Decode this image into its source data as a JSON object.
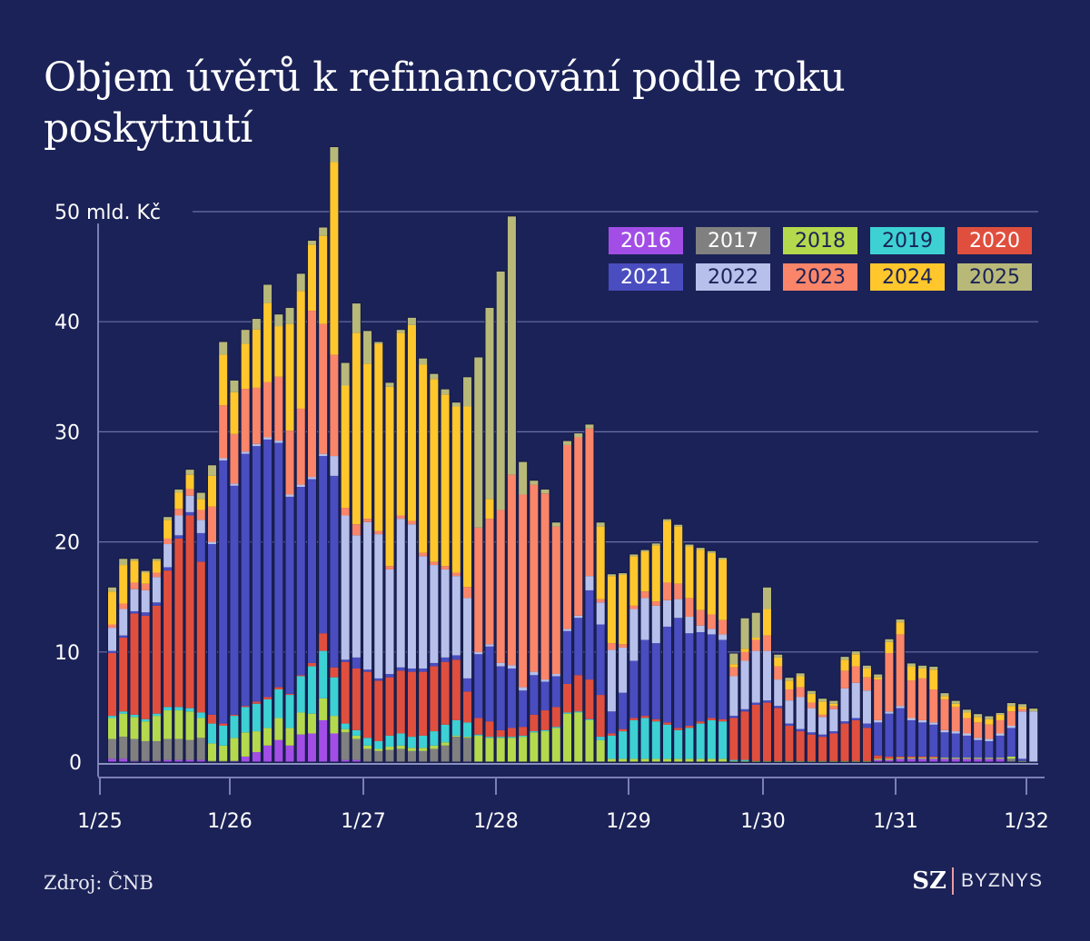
{
  "header": {
    "title": "Objem úvěrů k refinancování podle roku poskytnutí"
  },
  "footer": {
    "source": "Zdroj: ČNB",
    "brand_mark": "SZ",
    "brand_name": "BYZNYS"
  },
  "chart_data": {
    "type": "bar",
    "stacked": true,
    "title": "Objem úvěrů k refinancování podle roku poskytnutí",
    "xlabel": "",
    "ylabel": "mld. Kč",
    "ylim": [
      0,
      50
    ],
    "y_ticks": [
      0,
      10,
      20,
      30,
      40,
      50
    ],
    "y_tick_labels": [
      "0",
      "10",
      "20",
      "30",
      "40",
      "50 mld. Kč"
    ],
    "x_ticks": [
      "1/25",
      "1/26",
      "1/27",
      "1/28",
      "1/29",
      "1/30",
      "1/31",
      "1/32"
    ],
    "x_range": [
      "1/25",
      "1/32"
    ],
    "grid": true,
    "legend_position": "top-right",
    "categories_note": "monthly, January 2025 – December 2031",
    "series": [
      {
        "name": "2016",
        "color": "#a24ee6",
        "values": [
          0.3,
          0.3,
          0.1,
          0.1,
          0.1,
          0.2,
          0.2,
          0.2,
          0.2,
          0,
          0,
          0.1,
          0.5,
          0.9,
          1.5,
          2.0,
          1.5,
          2.5,
          2.6,
          3.8,
          2.6,
          0.2,
          0.2,
          0,
          0,
          0,
          0,
          0,
          0,
          0,
          0,
          0,
          0,
          0,
          0,
          0,
          0,
          0,
          0,
          0,
          0,
          0,
          0,
          0,
          0,
          0,
          0,
          0,
          0,
          0,
          0,
          0,
          0,
          0,
          0,
          0,
          0,
          0,
          0,
          0,
          0,
          0,
          0,
          0,
          0,
          0,
          0,
          0,
          0,
          0.2,
          0.2,
          0.3,
          0.3,
          0.3,
          0.3,
          0.3,
          0.3,
          0.3,
          0.3,
          0.3,
          0.3,
          0,
          0,
          0
        ]
      },
      {
        "name": "2017",
        "color": "#808080",
        "values": [
          1.8,
          2.0,
          2.0,
          1.8,
          1.8,
          1.9,
          1.9,
          1.8,
          2.0,
          0.1,
          0.1,
          0,
          0,
          0,
          0,
          0,
          0,
          0,
          0,
          0,
          0,
          2.5,
          1.9,
          1.2,
          1.0,
          1.1,
          1.2,
          1.0,
          1.0,
          1.2,
          1.5,
          2.3,
          2.2,
          0,
          0,
          0,
          0,
          0,
          0,
          0,
          0,
          0,
          0,
          0,
          0,
          0,
          0,
          0,
          0,
          0,
          0,
          0,
          0,
          0,
          0,
          0,
          0,
          0,
          0,
          0,
          0,
          0,
          0,
          0,
          0,
          0,
          0,
          0,
          0,
          0,
          0,
          0,
          0,
          0,
          0,
          0,
          0,
          0,
          0,
          0,
          0,
          0.3,
          0,
          0
        ]
      },
      {
        "name": "2018",
        "color": "#b5d94d",
        "values": [
          1.9,
          2.1,
          2.0,
          1.8,
          2.3,
          2.6,
          2.6,
          2.6,
          1.8,
          1.6,
          1.4,
          2.1,
          2.2,
          1.9,
          1.6,
          2.0,
          1.6,
          2.0,
          1.8,
          2.0,
          1.6,
          0.3,
          0.3,
          0.3,
          0.2,
          0.3,
          0.3,
          0.3,
          0.3,
          0.3,
          0.3,
          0.1,
          0.1,
          2.4,
          2.2,
          2.2,
          2.2,
          2.3,
          2.7,
          2.8,
          3.1,
          4.4,
          4.5,
          3.8,
          2.0,
          0.3,
          0.3,
          0.3,
          0.3,
          0.3,
          0.3,
          0.3,
          0.3,
          0.3,
          0.3,
          0.3,
          0.1,
          0.1,
          0.1,
          0.1,
          0.1,
          0.1,
          0.1,
          0.1,
          0.1,
          0.1,
          0.1,
          0.1,
          0.1,
          0.1,
          0.1,
          0.1,
          0.1,
          0.1,
          0.1,
          0.1,
          0.1,
          0.1,
          0.1,
          0.1,
          0.1,
          0.2,
          0.1,
          0
        ]
      },
      {
        "name": "2019",
        "color": "#3dd1d4",
        "values": [
          0.2,
          0.2,
          0.2,
          0.2,
          0.2,
          0.3,
          0.3,
          0.3,
          0.5,
          1.8,
          1.8,
          2.0,
          2.3,
          2.5,
          2.6,
          2.6,
          3.0,
          3.3,
          4.3,
          4.3,
          3.5,
          0.5,
          0.5,
          0.7,
          0.7,
          1.0,
          1.1,
          1.0,
          1.1,
          1.3,
          1.6,
          1.4,
          1.3,
          0.1,
          0.1,
          0.1,
          0.1,
          0.1,
          0.1,
          0.1,
          0.1,
          0.1,
          0.1,
          0.1,
          0.3,
          2.1,
          2.5,
          3.5,
          3.7,
          3.4,
          3.1,
          2.6,
          2.8,
          3.2,
          3.5,
          3.4,
          0.1,
          0.1,
          0,
          0,
          0,
          0,
          0,
          0,
          0,
          0,
          0,
          0,
          0,
          0,
          0,
          0,
          0,
          0,
          0,
          0,
          0,
          0,
          0,
          0,
          0,
          0,
          0,
          0
        ]
      },
      {
        "name": "2020",
        "color": "#e04f3e",
        "values": [
          5.7,
          6.7,
          9.2,
          9.4,
          9.8,
          12.4,
          15.3,
          17.5,
          13.7,
          0.8,
          0.2,
          0.1,
          0.1,
          0.2,
          0.2,
          0.2,
          0.1,
          0.1,
          0.3,
          1.6,
          0.9,
          5.6,
          5.6,
          6.0,
          5.5,
          5.3,
          5.7,
          5.9,
          5.8,
          5.9,
          5.7,
          5.5,
          2.8,
          1.5,
          1.4,
          0.6,
          0.8,
          0.8,
          1.5,
          1.8,
          1.8,
          2.6,
          3.3,
          3.6,
          3.8,
          0.2,
          0.2,
          0.2,
          0.2,
          0.2,
          0.2,
          0.2,
          0.2,
          0.2,
          0.2,
          0.2,
          3.8,
          4.4,
          5.1,
          5.3,
          4.8,
          3.2,
          2.7,
          2.4,
          2.2,
          2.5,
          3.4,
          3.7,
          3.0,
          0.3,
          0.2,
          0.1,
          0.1,
          0.1,
          0.1,
          0,
          0,
          0,
          0,
          0,
          0,
          0,
          0,
          0
        ]
      },
      {
        "name": "2021",
        "color": "#4a4dbf",
        "values": [
          0.2,
          0.2,
          0.2,
          0.3,
          0.3,
          0.3,
          0.3,
          0.3,
          2.6,
          15.5,
          23.9,
          20.8,
          22.9,
          23.2,
          23.4,
          22.2,
          17.9,
          17.1,
          16.7,
          16.1,
          17.4,
          0.2,
          1.0,
          0.2,
          0.2,
          0.3,
          0.3,
          0.3,
          0.3,
          0.3,
          0.4,
          0.4,
          1.2,
          5.8,
          6.8,
          5.8,
          5.4,
          3.3,
          3.6,
          2.6,
          2.8,
          4.8,
          5.2,
          8.1,
          6.4,
          2.0,
          3.3,
          5.2,
          6.9,
          6.9,
          8.7,
          10.0,
          8.4,
          8.1,
          7.6,
          7.2,
          0.2,
          0.2,
          0.2,
          0.2,
          0.2,
          0.2,
          0.2,
          0.2,
          0.2,
          0.2,
          0.2,
          0.2,
          0.4,
          3.0,
          3.9,
          4.4,
          3.3,
          3.1,
          2.9,
          2.3,
          2.2,
          2.0,
          1.6,
          1.5,
          2.0,
          2.6,
          0.2,
          0
        ]
      },
      {
        "name": "2022",
        "color": "#b6c0ea",
        "values": [
          2.1,
          2.4,
          2.0,
          2.0,
          2.3,
          2.1,
          1.8,
          1.5,
          1.2,
          0.2,
          0.2,
          0.2,
          0.2,
          0.2,
          0.2,
          0.2,
          0.2,
          0.2,
          0.2,
          0.2,
          1.8,
          13.1,
          11.1,
          13.4,
          13.1,
          9.5,
          13.5,
          13.1,
          10.2,
          8.9,
          8.0,
          7.2,
          7.3,
          0.2,
          0.2,
          0.3,
          0.3,
          0.3,
          0.3,
          0.2,
          0.2,
          0.2,
          0.2,
          1.3,
          2.0,
          5.6,
          4.1,
          4.7,
          3.8,
          3.4,
          2.4,
          1.7,
          1.5,
          0.6,
          0.5,
          0.5,
          3.6,
          4.4,
          4.7,
          4.5,
          2.4,
          2.1,
          2.9,
          2.2,
          1.6,
          2.0,
          3.0,
          3.2,
          3.0,
          0.2,
          0.2,
          0.2,
          0.2,
          0.2,
          0.2,
          0.2,
          0.2,
          0.2,
          0.2,
          0.2,
          0.2,
          0.2,
          4.3,
          4.6
        ]
      },
      {
        "name": "2023",
        "color": "#fa8569",
        "values": [
          0.3,
          0.5,
          0.6,
          0.6,
          0.4,
          0.5,
          0.6,
          0.6,
          0.9,
          3.2,
          4.8,
          4.5,
          5.7,
          5.1,
          5.0,
          5.8,
          5.8,
          6.9,
          15.1,
          11.8,
          9.2,
          0.7,
          1.0,
          0.3,
          0.3,
          0.3,
          0.3,
          0.3,
          0.3,
          0.3,
          0.3,
          0.3,
          1.0,
          11.3,
          11.4,
          13.9,
          17.3,
          17.5,
          17.0,
          16.9,
          13.4,
          16.7,
          16.2,
          13.4,
          0.3,
          0.6,
          0.3,
          0.3,
          0.6,
          0.4,
          1.6,
          1.4,
          1.7,
          1.4,
          1.3,
          1.3,
          0.8,
          0.8,
          1.0,
          1.4,
          1.2,
          1.0,
          0.9,
          0.5,
          0.2,
          0.3,
          1.6,
          1.5,
          1.2,
          3.7,
          5.3,
          6.5,
          3.4,
          3.8,
          3.0,
          2.8,
          2.2,
          1.4,
          1.4,
          1.3,
          1.2,
          1.3,
          0.2,
          0
        ]
      },
      {
        "name": "2024",
        "color": "#ffc72c",
        "values": [
          3.0,
          3.5,
          2.0,
          1.0,
          1.1,
          1.7,
          1.5,
          1.3,
          1.0,
          2.8,
          4.6,
          3.8,
          4.1,
          5.3,
          7.2,
          4.6,
          9.7,
          10.7,
          6.0,
          8.0,
          17.5,
          11.1,
          17.4,
          14.1,
          17.0,
          16.3,
          16.6,
          17.8,
          17.1,
          16.6,
          15.6,
          15.1,
          16.4,
          0,
          1.8,
          0,
          0,
          0,
          0,
          0,
          0,
          0,
          0,
          0,
          6.6,
          6.1,
          6.3,
          4.5,
          3.6,
          5.1,
          5.6,
          5.2,
          4.7,
          5.5,
          5.6,
          5.5,
          0.3,
          0.3,
          0.2,
          2.4,
          0.8,
          0.8,
          1.0,
          0.8,
          1.2,
          0.2,
          1.0,
          1.1,
          0.8,
          0.2,
          1.0,
          1.1,
          1.3,
          0.9,
          1.8,
          0.3,
          0.3,
          0.5,
          0.5,
          0.5,
          0.5,
          0.5,
          0.2,
          0
        ]
      },
      {
        "name": "2025",
        "color": "#b8b979",
        "values": [
          0.4,
          0.6,
          0.2,
          0.2,
          0.2,
          0.3,
          0.3,
          0.5,
          0.6,
          1.0,
          1.2,
          1.1,
          1.3,
          1.0,
          1.7,
          1.1,
          1.5,
          1.6,
          0.4,
          0.8,
          1.4,
          2.1,
          2.7,
          3.0,
          0.2,
          0.4,
          0.3,
          0.7,
          0.6,
          0.5,
          0.5,
          0.4,
          2.7,
          15.5,
          17.4,
          21.7,
          23.5,
          3.0,
          0.4,
          0.4,
          0.4,
          0.4,
          0.4,
          0.4,
          0.4,
          0.2,
          0.2,
          0.2,
          0.2,
          0.2,
          0.2,
          0.2,
          0.2,
          0.2,
          0.2,
          0.2,
          1.0,
          2.8,
          2.3,
          2.0,
          0.3,
          0.3,
          0.3,
          0.3,
          0.3,
          0.3,
          0.3,
          0.3,
          0.3,
          0.3,
          0.3,
          0.3,
          0.3,
          0.3,
          0.3,
          0.3,
          0.3,
          0.3,
          0.3,
          0.3,
          0.2,
          0.3,
          0.3,
          0.3
        ]
      }
    ]
  }
}
